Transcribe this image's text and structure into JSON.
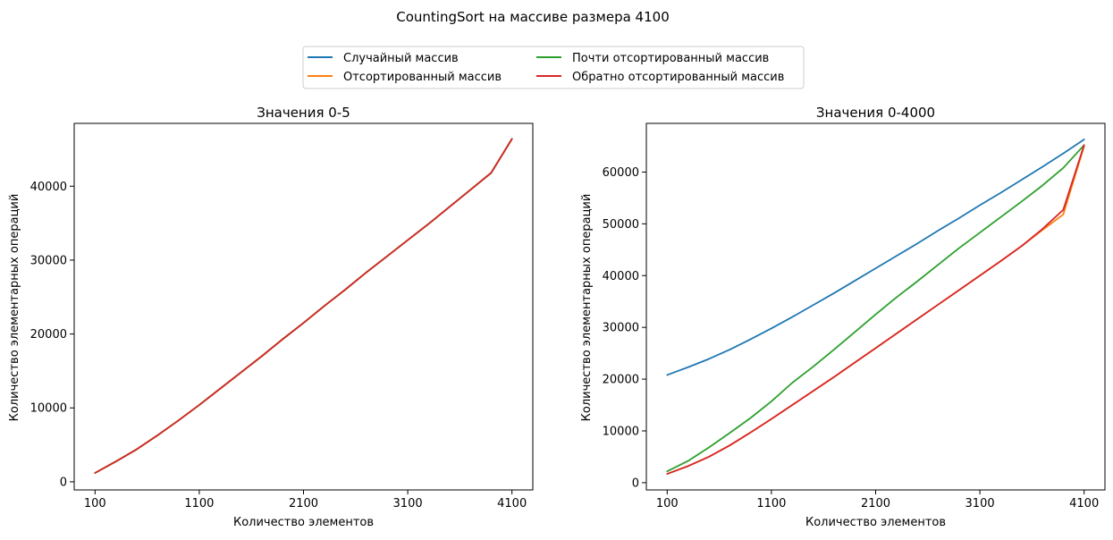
{
  "figure": {
    "suptitle": "CountingSort на массиве размера 4100"
  },
  "legend": {
    "placement": "top-center",
    "columns": 2,
    "entries": [
      {
        "label": "Случайный массив",
        "color": "#1f77b4"
      },
      {
        "label": "Отсортированный массив",
        "color": "#ff7f0e"
      },
      {
        "label": "Почти отсортированный массив",
        "color": "#2ca02c"
      },
      {
        "label": "Обратно отсортированный массив",
        "color": "#d62728"
      }
    ]
  },
  "chart_data": [
    {
      "type": "line",
      "title": "Значения 0-5",
      "xlabel": "Количество элементов",
      "ylabel": "Количество элементарных операций",
      "xlim": [
        -100,
        4300
      ],
      "ylim": [
        -1100,
        48500
      ],
      "xticks": [
        100,
        1100,
        2100,
        3100,
        4100
      ],
      "yticks": [
        0,
        10000,
        20000,
        30000,
        40000
      ],
      "x": [
        100,
        300,
        500,
        700,
        900,
        1100,
        1300,
        1500,
        1700,
        1900,
        2100,
        2300,
        2500,
        2700,
        2900,
        3100,
        3300,
        3500,
        3700,
        3900,
        4100
      ],
      "series": [
        {
          "name": "Случайный массив",
          "color": "#1f77b4",
          "values": [
            1200,
            2750,
            4400,
            6300,
            8300,
            10400,
            12600,
            14800,
            17000,
            19300,
            21500,
            23800,
            26000,
            28300,
            30500,
            32700,
            34900,
            37200,
            39500,
            41800,
            46400
          ]
        },
        {
          "name": "Отсортированный массив",
          "color": "#ff7f0e",
          "values": [
            1200,
            2750,
            4400,
            6300,
            8300,
            10400,
            12600,
            14800,
            17000,
            19300,
            21500,
            23800,
            26000,
            28300,
            30500,
            32700,
            34900,
            37200,
            39500,
            41800,
            46400
          ]
        },
        {
          "name": "Почти отсортированный массив",
          "color": "#2ca02c",
          "values": [
            1200,
            2750,
            4400,
            6300,
            8300,
            10400,
            12600,
            14800,
            17000,
            19300,
            21500,
            23800,
            26000,
            28300,
            30500,
            32700,
            34900,
            37200,
            39500,
            41800,
            46400
          ]
        },
        {
          "name": "Обратно отсортированный массив",
          "color": "#d62728",
          "values": [
            1200,
            2750,
            4400,
            6300,
            8300,
            10400,
            12600,
            14800,
            17000,
            19300,
            21500,
            23800,
            26000,
            28300,
            30500,
            32700,
            34900,
            37200,
            39500,
            41800,
            46400
          ]
        }
      ]
    },
    {
      "type": "line",
      "title": "Значения 0-4000",
      "xlabel": "Количество элементов",
      "ylabel": "Количество элементарных операций",
      "xlim": [
        -100,
        4300
      ],
      "ylim": [
        -1400,
        69400
      ],
      "xticks": [
        100,
        1100,
        2100,
        3100,
        4100
      ],
      "yticks": [
        0,
        10000,
        20000,
        30000,
        40000,
        50000,
        60000
      ],
      "x": [
        100,
        300,
        500,
        700,
        900,
        1100,
        1300,
        1500,
        1700,
        1900,
        2100,
        2300,
        2500,
        2700,
        2900,
        3100,
        3300,
        3500,
        3700,
        3900,
        4100
      ],
      "series": [
        {
          "name": "Случайный массив",
          "color": "#1f77b4",
          "values": [
            20800,
            22300,
            23900,
            25700,
            27700,
            29800,
            32000,
            34300,
            36600,
            39000,
            41400,
            43800,
            46200,
            48700,
            51100,
            53600,
            56000,
            58500,
            61000,
            63600,
            66300
          ]
        },
        {
          "name": "Отсортированный массив",
          "color": "#ff7f0e",
          "values": [
            1700,
            3200,
            5000,
            7200,
            9700,
            12300,
            15000,
            17700,
            20400,
            23200,
            26000,
            28800,
            31600,
            34400,
            37200,
            40000,
            42800,
            45700,
            48800,
            51800,
            65000
          ]
        },
        {
          "name": "Почти отсортированный массив",
          "color": "#2ca02c",
          "values": [
            2200,
            4200,
            6800,
            9600,
            12500,
            15700,
            19300,
            22400,
            25700,
            29100,
            32500,
            35800,
            38900,
            42100,
            45300,
            48300,
            51300,
            54300,
            57400,
            60800,
            65200
          ]
        },
        {
          "name": "Обратно отсортированный массив",
          "color": "#d62728",
          "values": [
            1700,
            3200,
            5000,
            7200,
            9700,
            12300,
            15000,
            17700,
            20400,
            23200,
            26000,
            28800,
            31600,
            34400,
            37200,
            40000,
            42800,
            45700,
            49000,
            52700,
            65200
          ]
        }
      ]
    }
  ]
}
